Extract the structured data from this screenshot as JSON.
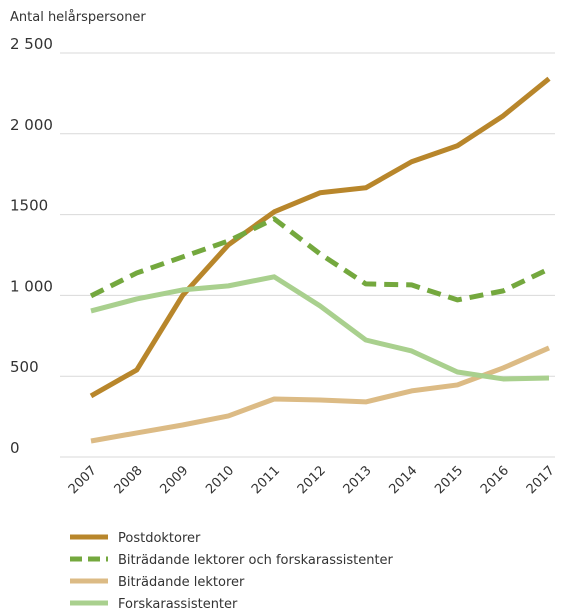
{
  "chart_data": {
    "type": "line",
    "ylabel": "Antal helårspersoner",
    "categories": [
      "2007",
      "2008",
      "2009",
      "2010",
      "2011",
      "2012",
      "2013",
      "2014",
      "2015",
      "2016",
      "2017"
    ],
    "series": [
      {
        "name": "Postdoktorer",
        "color": "#b8862b",
        "dashed": false,
        "values": [
          378,
          539,
          1000,
          1313,
          1517,
          1635,
          1666,
          1827,
          1926,
          2111,
          2341
        ]
      },
      {
        "name": "Biträdande lektorer och forskarassistenter",
        "color": "#74a83e",
        "dashed": true,
        "values": [
          997,
          1139,
          1238,
          1337,
          1474,
          1257,
          1071,
          1065,
          972,
          1028,
          1164
        ]
      },
      {
        "name": "Biträdande lektorer",
        "color": "#dcbb85",
        "dashed": false,
        "values": [
          99,
          149,
          198,
          254,
          359,
          353,
          341,
          409,
          446,
          551,
          675
        ]
      },
      {
        "name": "Forskarassistenter",
        "color": "#a9d08e",
        "dashed": false,
        "values": [
          904,
          978,
          1034,
          1059,
          1115,
          935,
          724,
          656,
          526,
          483,
          489
        ]
      }
    ],
    "ylim": [
      0,
      2500
    ],
    "yticks": [
      0,
      500,
      {
        "value": 1000,
        "label": "1 000"
      },
      1500,
      {
        "value": 2000,
        "label": "2 000"
      },
      {
        "value": 2500,
        "label": "2 500"
      }
    ],
    "grid": true
  }
}
